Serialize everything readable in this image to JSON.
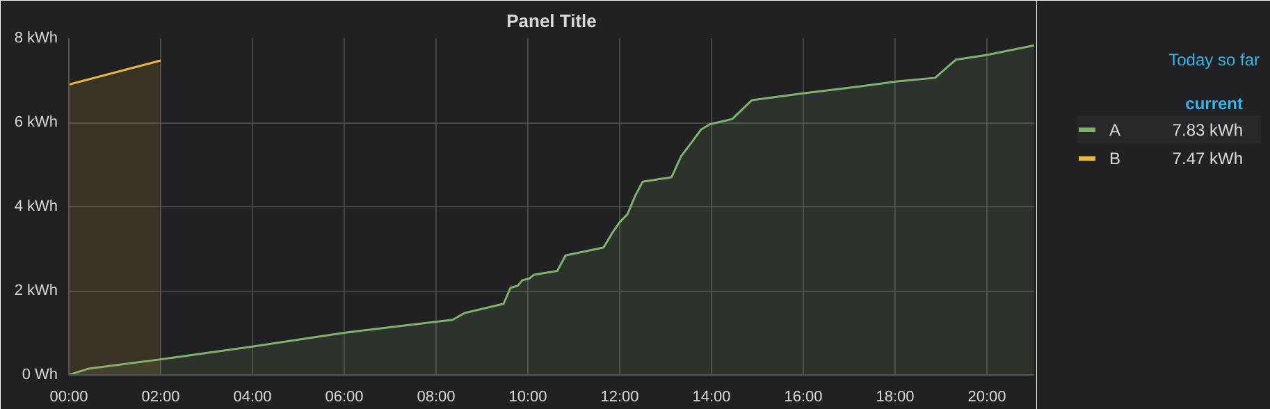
{
  "chart_data": {
    "type": "area",
    "title": "Panel Title",
    "x": [
      0,
      0.43,
      2.0,
      3.97,
      5.99,
      8.36,
      8.62,
      9.47,
      9.62,
      9.78,
      9.88,
      10.03,
      10.13,
      10.64,
      10.82,
      11.65,
      11.83,
      12.0,
      12.17,
      12.33,
      12.45,
      12.5,
      13.13,
      13.34,
      13.57,
      13.77,
      13.97,
      14.45,
      14.88,
      15.99,
      17.2,
      18.01,
      18.87,
      19.32,
      19.98,
      21.03
    ],
    "series": [
      {
        "name": "A",
        "color": "#7eb26d",
        "values": [
          0,
          0.15,
          0.37,
          0.67,
          1.0,
          1.31,
          1.47,
          1.69,
          2.07,
          2.12,
          2.25,
          2.29,
          2.38,
          2.47,
          2.84,
          3.03,
          3.36,
          3.63,
          3.82,
          4.24,
          4.49,
          4.59,
          4.7,
          5.2,
          5.53,
          5.83,
          5.96,
          6.08,
          6.53,
          6.69,
          6.85,
          6.97,
          7.06,
          7.49,
          7.6,
          7.83
        ]
      },
      {
        "name": "B",
        "color": "#eab839",
        "x": [
          0,
          2.0
        ],
        "values": [
          6.9,
          7.47
        ]
      }
    ],
    "xlim": [
      0,
      21.03
    ],
    "xticks": [
      {
        "value": 0,
        "label": "00:00"
      },
      {
        "value": 2,
        "label": "02:00"
      },
      {
        "value": 4,
        "label": "04:00"
      },
      {
        "value": 6,
        "label": "06:00"
      },
      {
        "value": 8,
        "label": "08:00"
      },
      {
        "value": 10,
        "label": "10:00"
      },
      {
        "value": 12,
        "label": "12:00"
      },
      {
        "value": 14,
        "label": "14:00"
      },
      {
        "value": 16,
        "label": "16:00"
      },
      {
        "value": 18,
        "label": "18:00"
      },
      {
        "value": 20,
        "label": "20:00"
      }
    ],
    "ylim": [
      0,
      8
    ],
    "yticks": [
      {
        "value": 0,
        "label": "0 Wh"
      },
      {
        "value": 2,
        "label": "2 kWh"
      },
      {
        "value": 4,
        "label": "4 kWh"
      },
      {
        "value": 6,
        "label": "6 kWh"
      },
      {
        "value": 8,
        "label": "8 kWh"
      }
    ],
    "grid": true,
    "legend": "right",
    "legend_title": "current",
    "annotations": [
      "Today so far",
      "7.83 kWh",
      "7.47 kWh"
    ]
  }
}
